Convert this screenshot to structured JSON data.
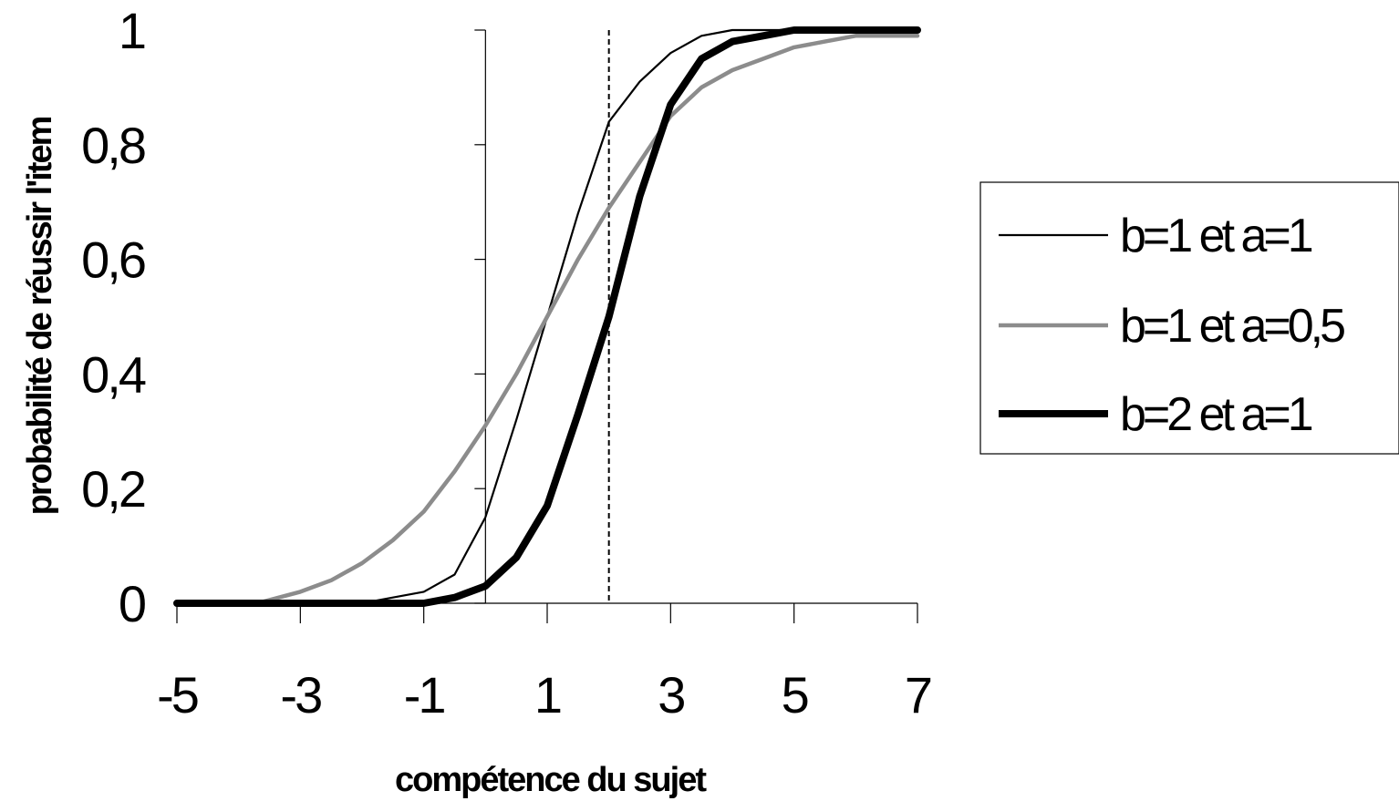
{
  "chart_data": {
    "type": "line",
    "title": "",
    "xlabel": "compétence du sujet",
    "ylabel": "probabilité de réussir l'item",
    "xlim": [
      -5,
      7
    ],
    "ylim": [
      0,
      1
    ],
    "xticks": [
      -5,
      -3,
      -1,
      1,
      3,
      5,
      7
    ],
    "xtick_labels": [
      "-5",
      "-3",
      "-1",
      "1",
      "3",
      "5",
      "7"
    ],
    "yticks": [
      0,
      0.2,
      0.4,
      0.6,
      0.8,
      1
    ],
    "ytick_labels": [
      "0",
      "0,2",
      "0,4",
      "0,6",
      "0,8",
      "1"
    ],
    "grid": false,
    "legend_position": "right",
    "reference_lines": [
      {
        "orientation": "vertical",
        "x": 0,
        "style": "solid"
      },
      {
        "orientation": "vertical",
        "x": 2,
        "style": "dashed"
      }
    ],
    "series": [
      {
        "name": "b=1 et a=1",
        "color": "#000000",
        "weight": "thin",
        "x": [
          -5,
          -4,
          -3,
          -2,
          -1.5,
          -1,
          -0.5,
          0,
          0.5,
          1,
          1.5,
          2,
          2.5,
          3,
          3.5,
          4,
          5,
          6,
          7
        ],
        "y": [
          0.0,
          0.0,
          0.0,
          0.0,
          0.01,
          0.02,
          0.05,
          0.15,
          0.32,
          0.5,
          0.68,
          0.84,
          0.91,
          0.96,
          0.99,
          1.0,
          1.0,
          1.0,
          1.0
        ]
      },
      {
        "name": "b=1 et a=0,5",
        "color": "#8c8c8c",
        "weight": "medium",
        "x": [
          -5,
          -4,
          -3.7,
          -3,
          -2.5,
          -2,
          -1.5,
          -1,
          -0.5,
          0,
          0.5,
          1,
          1.5,
          2,
          2.5,
          3,
          3.5,
          4,
          4.5,
          5,
          5.5,
          6,
          7
        ],
        "y": [
          0.0,
          0.0,
          0.0,
          0.02,
          0.04,
          0.07,
          0.11,
          0.16,
          0.23,
          0.31,
          0.4,
          0.5,
          0.6,
          0.69,
          0.77,
          0.85,
          0.9,
          0.93,
          0.95,
          0.97,
          0.98,
          0.99,
          0.99
        ]
      },
      {
        "name": "b=2 et a=1",
        "color": "#000000",
        "weight": "thick",
        "x": [
          -5,
          -4,
          -3,
          -2,
          -1,
          -0.5,
          0,
          0.5,
          1,
          1.5,
          2,
          2.5,
          3,
          3.5,
          4,
          4.5,
          5,
          6,
          7
        ],
        "y": [
          0.0,
          0.0,
          0.0,
          0.0,
          0.0,
          0.01,
          0.03,
          0.08,
          0.17,
          0.33,
          0.5,
          0.71,
          0.87,
          0.95,
          0.98,
          0.99,
          1.0,
          1.0,
          1.0
        ]
      }
    ]
  }
}
